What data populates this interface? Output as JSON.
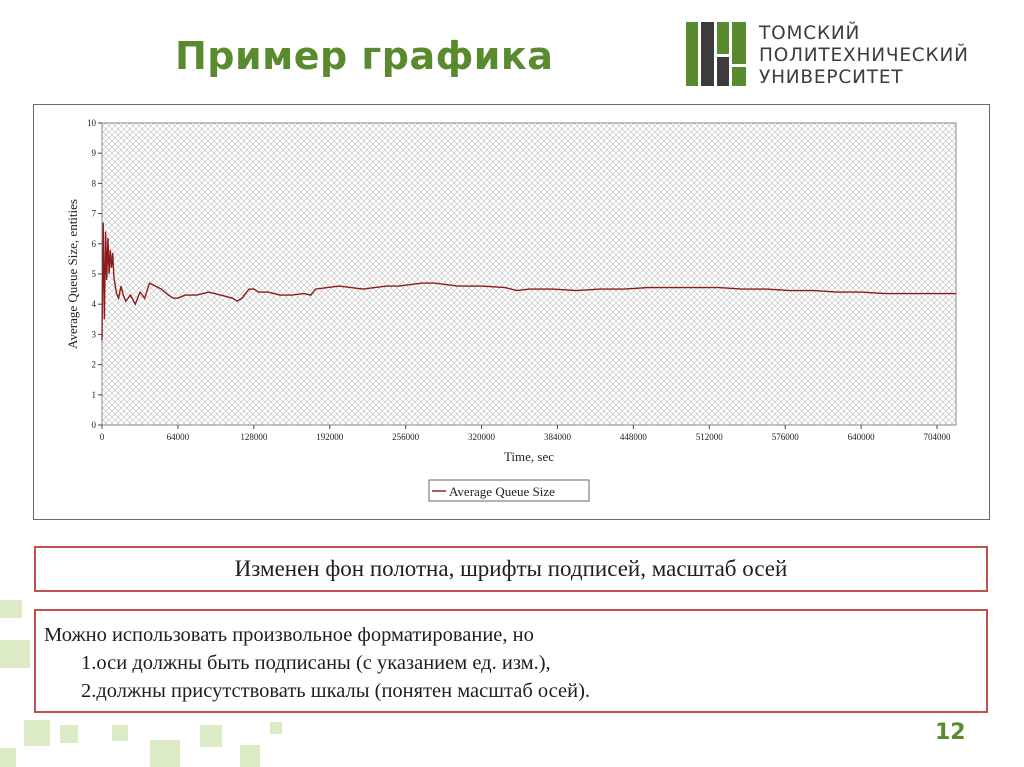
{
  "slide": {
    "title": "Пример графика",
    "page_number": "12",
    "accent_color": "#5a8a2e",
    "callout_border_color": "#c0504d"
  },
  "logo": {
    "lines": [
      "ТОМСКИЙ",
      "ПОЛИТЕХНИЧЕСКИЙ",
      "УНИВЕРСИТЕТ"
    ],
    "mark_colors": [
      "#5a8a2e",
      "#3c3c3c"
    ]
  },
  "chart_data": {
    "type": "line",
    "xlabel": "Time, sec",
    "ylabel": "Average Queue Size, entities",
    "xlim": [
      0,
      720000
    ],
    "ylim": [
      0,
      10
    ],
    "x_ticks": [
      0,
      64000,
      128000,
      192000,
      256000,
      320000,
      384000,
      448000,
      512000,
      576000,
      640000,
      704000
    ],
    "y_ticks": [
      0,
      1,
      2,
      3,
      4,
      5,
      6,
      7,
      8,
      9,
      10
    ],
    "grid": true,
    "grid_style": "crosshatch",
    "legend_position": "bottom",
    "series": [
      {
        "name": "Average Queue Size",
        "color": "#8b1a1a",
        "x": [
          0,
          1000,
          2000,
          3000,
          4000,
          5000,
          6000,
          7000,
          8000,
          9000,
          10000,
          12000,
          14000,
          16000,
          18000,
          20000,
          24000,
          28000,
          32000,
          36000,
          40000,
          45000,
          50000,
          56000,
          60000,
          64000,
          70000,
          80000,
          90000,
          100000,
          110000,
          114000,
          118000,
          120000,
          124000,
          128000,
          132000,
          140000,
          150000,
          160000,
          170000,
          176000,
          180000,
          190000,
          200000,
          210000,
          220000,
          230000,
          240000,
          250000,
          260000,
          270000,
          280000,
          290000,
          300000,
          320000,
          340000,
          350000,
          360000,
          380000,
          400000,
          420000,
          440000,
          460000,
          480000,
          500000,
          520000,
          540000,
          560000,
          580000,
          600000,
          620000,
          640000,
          660000,
          680000,
          700000,
          720000
        ],
        "y": [
          2.8,
          6.7,
          3.5,
          6.4,
          4.8,
          6.2,
          5.0,
          5.8,
          5.2,
          5.7,
          4.9,
          4.4,
          4.2,
          4.6,
          4.3,
          4.1,
          4.3,
          4.0,
          4.4,
          4.2,
          4.7,
          4.6,
          4.5,
          4.3,
          4.2,
          4.2,
          4.3,
          4.3,
          4.4,
          4.3,
          4.2,
          4.1,
          4.2,
          4.3,
          4.5,
          4.5,
          4.4,
          4.4,
          4.3,
          4.3,
          4.35,
          4.3,
          4.5,
          4.55,
          4.6,
          4.55,
          4.5,
          4.55,
          4.6,
          4.6,
          4.65,
          4.7,
          4.7,
          4.65,
          4.6,
          4.6,
          4.55,
          4.45,
          4.5,
          4.5,
          4.45,
          4.5,
          4.5,
          4.55,
          4.55,
          4.55,
          4.55,
          4.5,
          4.5,
          4.45,
          4.45,
          4.4,
          4.4,
          4.35,
          4.35,
          4.35,
          4.35
        ]
      }
    ]
  },
  "callouts": {
    "caption": "Изменен фон полотна, шрифты подписей, масштаб осей",
    "intro": "Можно использовать произвольное форматирование, но",
    "items": [
      "1.оси должны быть подписаны (с указанием ед. изм.),",
      "2.должны присутствовать шкалы (понятен масштаб осей)."
    ]
  }
}
